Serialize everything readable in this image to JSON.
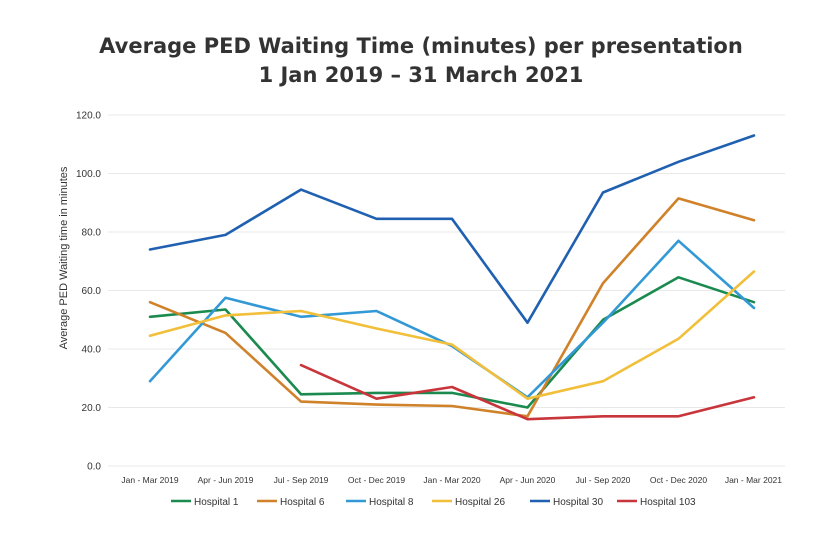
{
  "chart_data": {
    "type": "line",
    "title": "Average PED Waiting Time (minutes) per presentation",
    "subtitle": "1 Jan 2019 – 31 March 2021",
    "xlabel": "",
    "ylabel": "Average PED Waiting time in minutes",
    "ylim": [
      0,
      120
    ],
    "yticks": [
      "0.0",
      "20.0",
      "40.0",
      "60.0",
      "80.0",
      "100.0",
      "120.0"
    ],
    "grid": true,
    "legend_position": "bottom",
    "categories": [
      "Jan - Mar 2019",
      "Apr - Jun 2019",
      "Jul - Sep 2019",
      "Oct - Dec 2019",
      "Jan - Mar 2020",
      "Apr - Jun 2020",
      "Jul - Sep 2020",
      "Oct - Dec 2020",
      "Jan - Mar 2021"
    ],
    "series": [
      {
        "name": "Hospital 1",
        "color": "#1a8a4f",
        "values": [
          51,
          53.5,
          24.5,
          25,
          25,
          20,
          50,
          64.5,
          56
        ]
      },
      {
        "name": "Hospital 6",
        "color": "#d0822a",
        "values": [
          56,
          45.5,
          22,
          21,
          20.5,
          17,
          62.5,
          91.5,
          84
        ]
      },
      {
        "name": "Hospital 8",
        "color": "#3399d6",
        "values": [
          29,
          57.5,
          51,
          53,
          41,
          23.5,
          49,
          77,
          54
        ]
      },
      {
        "name": "Hospital 26",
        "color": "#f2bf3a",
        "values": [
          44.5,
          51.5,
          53,
          47,
          41.5,
          23,
          29,
          43.5,
          66.5
        ]
      },
      {
        "name": "Hospital 30",
        "color": "#2060b0",
        "values": [
          74,
          79,
          94.5,
          84.5,
          84.5,
          49,
          93.5,
          104,
          113
        ]
      },
      {
        "name": "Hospital 103",
        "color": "#c8353a",
        "values": [
          null,
          null,
          34.5,
          23,
          27,
          16,
          17,
          17,
          23.5
        ]
      }
    ]
  }
}
